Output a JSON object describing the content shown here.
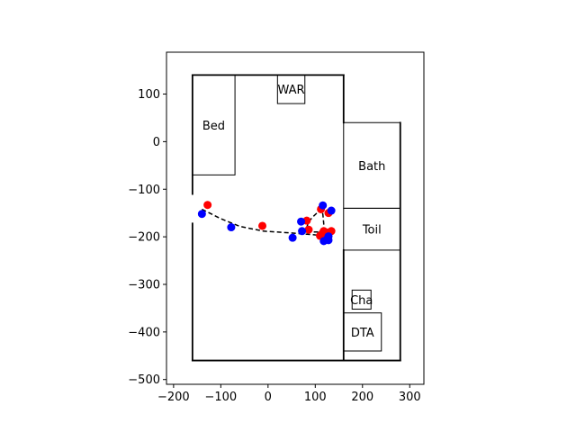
{
  "chart_data": {
    "type": "scatter",
    "xlim": [
      -215,
      330
    ],
    "ylim": [
      -510,
      188
    ],
    "xticks": [
      -200,
      -100,
      0,
      100,
      200,
      300
    ],
    "yticks": [
      100,
      0,
      -100,
      -200,
      -300,
      -400,
      -500
    ],
    "xtick_labels": [
      "−200",
      "−100",
      "0",
      "100",
      "200",
      "300"
    ],
    "ytick_labels": [
      "100",
      "0",
      "−100",
      "−200",
      "−300",
      "−400",
      "−500"
    ],
    "grid": false,
    "floorplan": {
      "walls": [
        [
          [
            -160,
            140
          ],
          [
            160,
            140
          ]
        ],
        [
          [
            160,
            140
          ],
          [
            160,
            40
          ]
        ],
        [
          [
            160,
            -228
          ],
          [
            160,
            -460
          ]
        ],
        [
          [
            -160,
            140
          ],
          [
            -160,
            -110
          ]
        ],
        [
          [
            -160,
            -172
          ],
          [
            -160,
            -460
          ]
        ],
        [
          [
            -160,
            -460
          ],
          [
            280,
            -460
          ]
        ],
        [
          [
            280,
            40
          ],
          [
            280,
            -460
          ]
        ]
      ],
      "rooms": [
        {
          "label": "Bed",
          "x0": -160,
          "y0": -70,
          "x1": -70,
          "y1": 140
        },
        {
          "label": "WAR",
          "x0": 20,
          "y0": 80,
          "x1": 78,
          "y1": 140
        },
        {
          "label": "Bath",
          "x0": 160,
          "y0": -140,
          "x1": 280,
          "y1": 40
        },
        {
          "label": "Toil",
          "x0": 160,
          "y0": -228,
          "x1": 280,
          "y1": -140
        },
        {
          "label": "Cha",
          "x0": 178,
          "y0": -352,
          "x1": 218,
          "y1": -312
        },
        {
          "label": "DTA",
          "x0": 160,
          "y0": -440,
          "x1": 240,
          "y1": -360
        }
      ]
    },
    "path": [
      [
        -140,
        -142
      ],
      [
        -100,
        -162
      ],
      [
        -60,
        -178
      ],
      [
        -10,
        -188
      ],
      [
        50,
        -192
      ],
      [
        100,
        -196
      ],
      [
        118,
        -197
      ],
      [
        118,
        -188
      ],
      [
        118,
        -172
      ],
      [
        116,
        -152
      ],
      [
        112,
        -142
      ],
      [
        96,
        -157
      ],
      [
        86,
        -168
      ],
      [
        80,
        -186
      ],
      [
        96,
        -190
      ],
      [
        124,
        -190
      ]
    ],
    "series": [
      {
        "color": "#ff0000",
        "points": [
          [
            -128,
            -133
          ],
          [
            -12,
            -177
          ],
          [
            82,
            -166
          ],
          [
            86,
            -185
          ],
          [
            110,
            -198
          ],
          [
            115,
            -193
          ],
          [
            118,
            -188
          ],
          [
            124,
            -191
          ],
          [
            128,
            -150
          ],
          [
            134,
            -188
          ],
          [
            112,
            -142
          ]
        ]
      },
      {
        "color": "#0000ff",
        "points": [
          [
            -140,
            -152
          ],
          [
            -78,
            -180
          ],
          [
            52,
            -202
          ],
          [
            70,
            -168
          ],
          [
            72,
            -188
          ],
          [
            116,
            -134
          ],
          [
            118,
            -209
          ],
          [
            126,
            -204
          ],
          [
            128,
            -199
          ],
          [
            128,
            -207
          ],
          [
            134,
            -145
          ]
        ]
      }
    ]
  }
}
